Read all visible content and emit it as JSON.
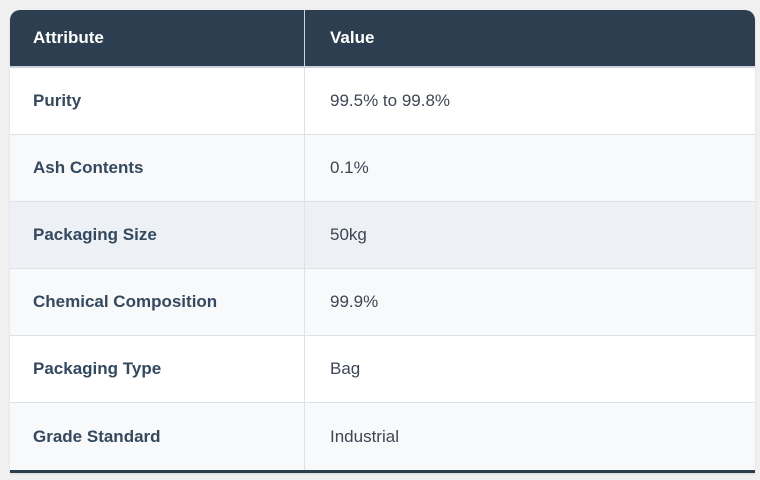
{
  "chart_data": {
    "type": "table",
    "columns": [
      {
        "label": "Attribute"
      },
      {
        "label": "Value"
      }
    ],
    "rows": [
      {
        "attribute": "Purity",
        "value": "99.5% to 99.8%",
        "highlighted": false
      },
      {
        "attribute": "Ash Contents",
        "value": "0.1%",
        "highlighted": false
      },
      {
        "attribute": "Packaging Size",
        "value": "50kg",
        "highlighted": true
      },
      {
        "attribute": "Chemical Composition",
        "value": "99.9%",
        "highlighted": false
      },
      {
        "attribute": "Packaging Type",
        "value": "Bag",
        "highlighted": false
      },
      {
        "attribute": "Grade Standard",
        "value": "Industrial",
        "highlighted": false
      }
    ]
  },
  "colors": {
    "header_bg": "#2c3e50",
    "header_text": "#ffffff",
    "attribute_text": "#34495e",
    "value_text": "#3e4653",
    "stripe_bg": "#f8f9fa",
    "highlight_bg": "#edf1f6",
    "row_divider": "#dee2e6",
    "bottom_border": "#2c3e50",
    "page_bg": "#f0f0f1"
  }
}
